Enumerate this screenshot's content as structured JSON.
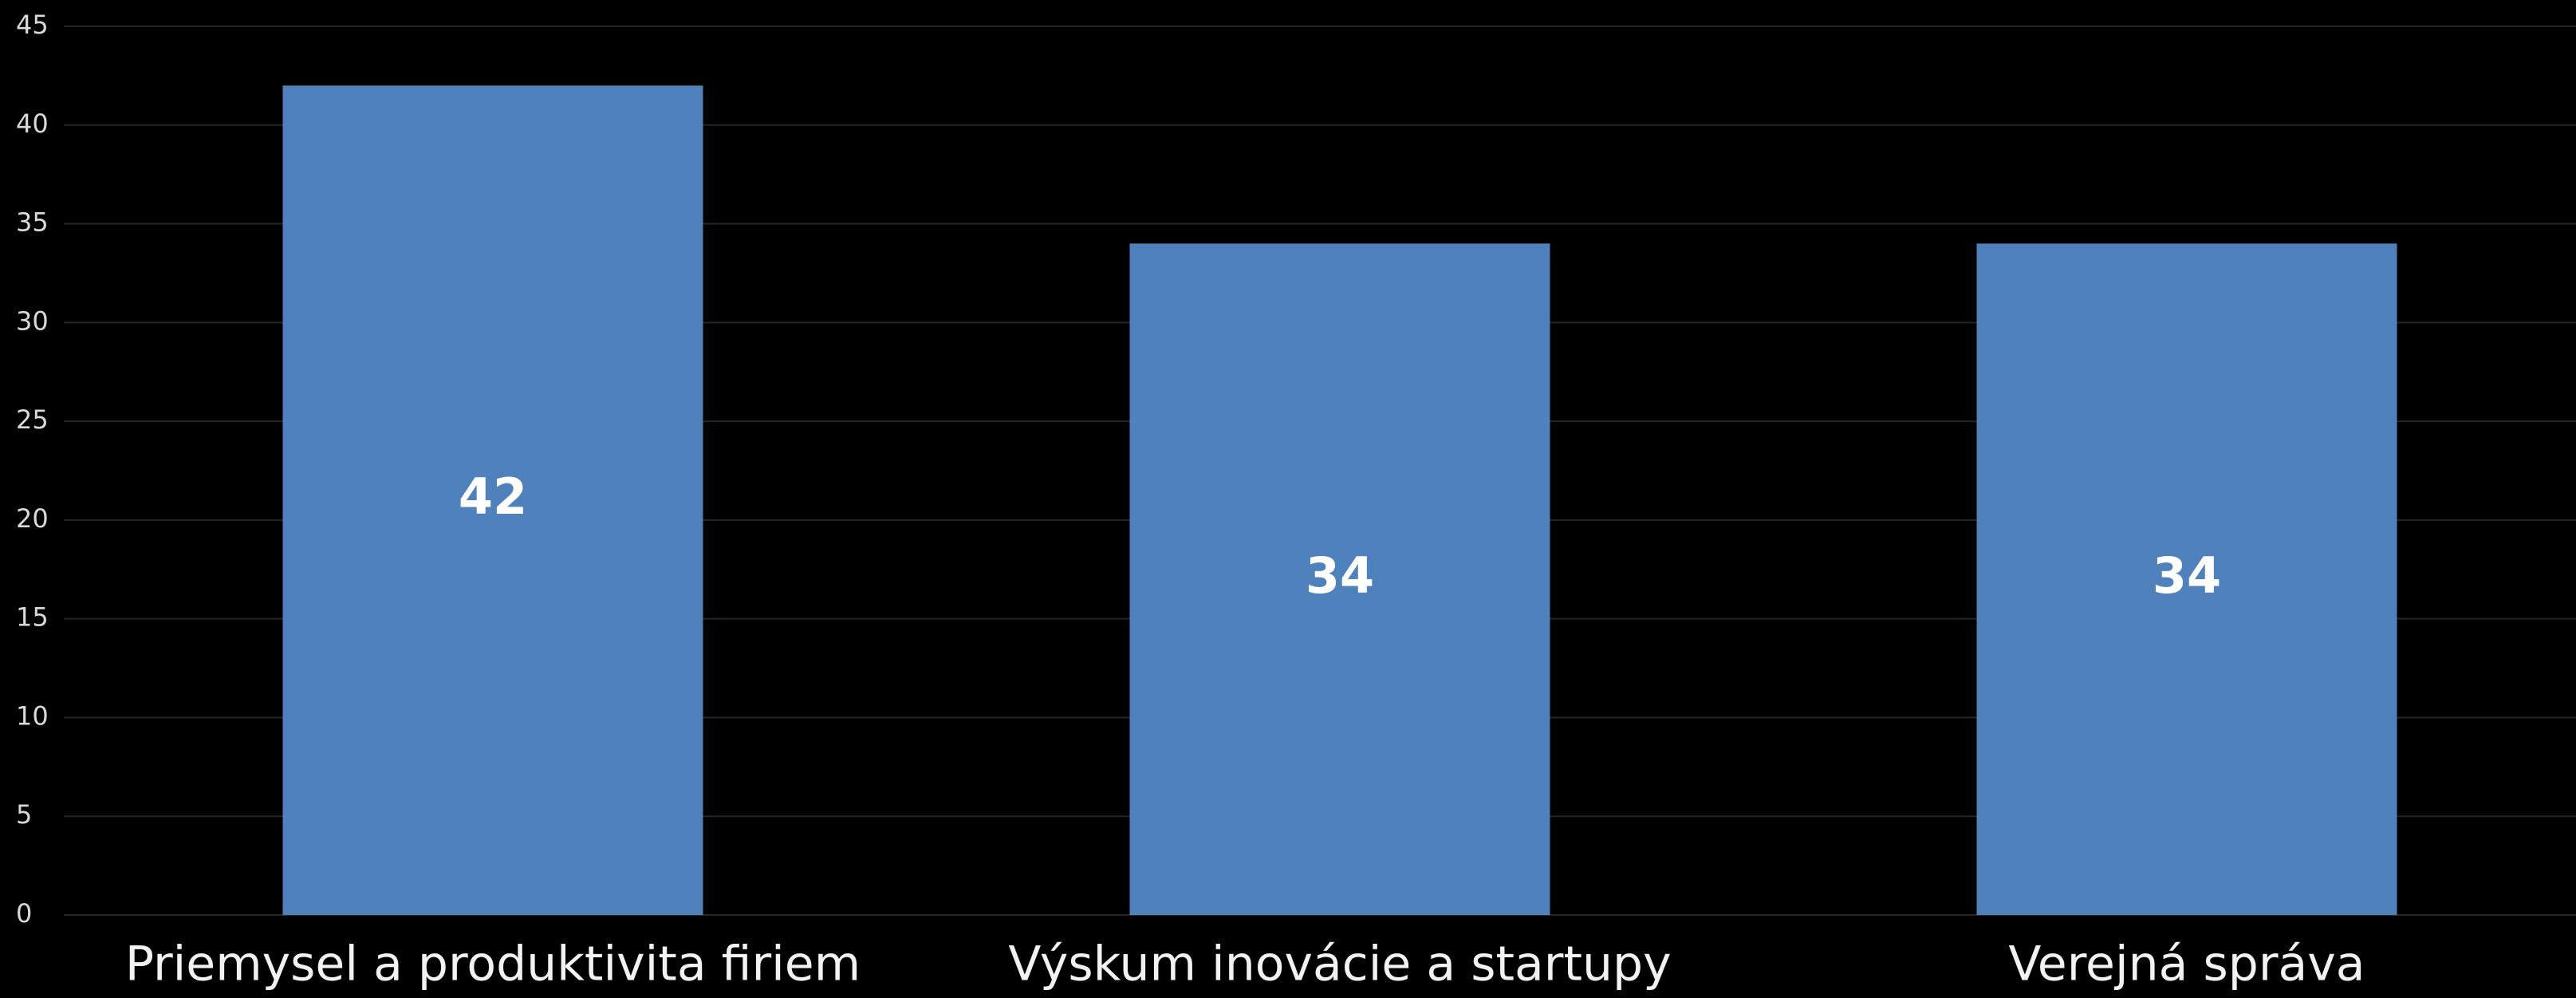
{
  "chart_data": {
    "type": "bar",
    "categories": [
      "Priemysel a produktivita firiem",
      "Výskum inovácie a startupy",
      "Verejná správa"
    ],
    "values": [
      42,
      34,
      34
    ],
    "color": "#4f81bd",
    "ylim": [
      0,
      45
    ],
    "yticks": [
      0,
      5,
      10,
      15,
      20,
      25,
      30,
      35,
      40,
      45
    ],
    "grid": true
  }
}
